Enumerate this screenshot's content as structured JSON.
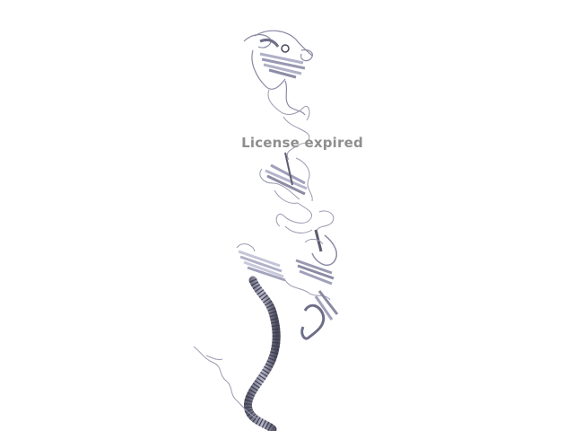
{
  "watermark": {
    "text": "License expired"
  },
  "colors": {
    "background": "#ffffff",
    "ribbon_light": "#c8c8dc",
    "ribbon_mid": "#9a9ab4",
    "ribbon_dark": "#5c5c70",
    "watermark": "#8e8e8e"
  }
}
